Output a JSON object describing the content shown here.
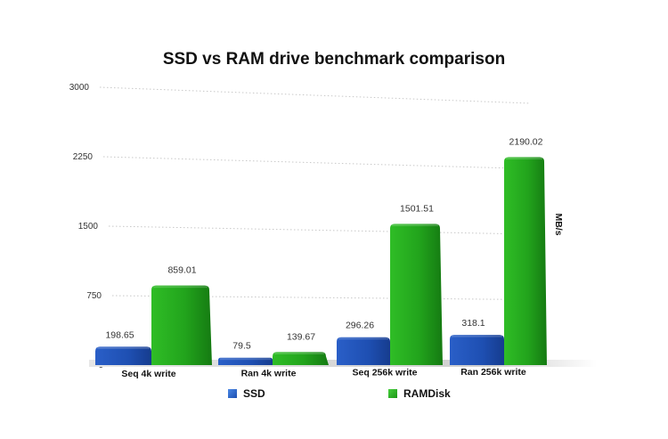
{
  "chart_data": {
    "type": "bar",
    "title": "SSD vs RAM drive benchmark comparison",
    "xlabel": "",
    "ylabel": "MB/s",
    "ylim": [
      0,
      3000
    ],
    "yticks": [
      0,
      750,
      1500,
      2250,
      3000
    ],
    "grid": true,
    "legend_position": "bottom",
    "categories": [
      "Seq 4k write",
      "Ran 4k write",
      "Seq 256k write",
      "Ran 256k write"
    ],
    "series": [
      {
        "name": "SSD",
        "color": "#1f4fb5",
        "values": [
          198.65,
          79.5,
          296.26,
          318.1
        ],
        "labels": [
          "198.65",
          "79.5",
          "296.26",
          "318.1"
        ]
      },
      {
        "name": "RAMDisk",
        "color": "#22a51c",
        "values": [
          859.01,
          139.67,
          1501.51,
          2190.02
        ],
        "labels": [
          "859.01",
          "139.67",
          "1501.51",
          "2190.02"
        ]
      }
    ]
  }
}
